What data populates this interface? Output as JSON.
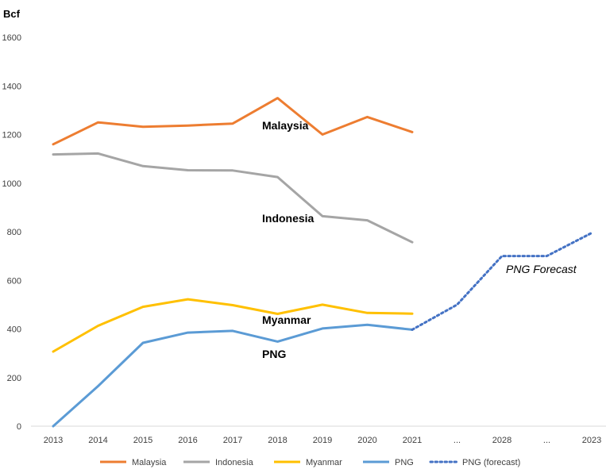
{
  "chart_data": {
    "type": "line",
    "ylabel": "Bcf",
    "xlabel": "",
    "title": "",
    "ylim": [
      0,
      1600
    ],
    "yticks": [
      0,
      200,
      400,
      600,
      800,
      1000,
      1200,
      1400,
      1600
    ],
    "categories": [
      "2013",
      "2014",
      "2015",
      "2016",
      "2017",
      "2018",
      "2019",
      "2020",
      "2021",
      "...",
      "2028",
      "...",
      "2023"
    ],
    "grid": false,
    "legend_position": "bottom",
    "series": [
      {
        "name": "Malaysia",
        "color": "#ED7D31",
        "style": "solid",
        "values": [
          1160,
          1250,
          1232,
          1237,
          1245,
          1350,
          1200,
          1272,
          1210,
          null,
          null,
          null,
          null
        ]
      },
      {
        "name": "Indonesia",
        "color": "#A5A5A5",
        "style": "solid",
        "values": [
          1118,
          1122,
          1070,
          1053,
          1052,
          1025,
          864,
          847,
          757,
          null,
          null,
          null,
          null
        ]
      },
      {
        "name": "Myanmar",
        "color": "#FFC000",
        "style": "solid",
        "values": [
          307,
          413,
          491,
          522,
          498,
          462,
          500,
          466,
          463,
          null,
          null,
          null,
          null
        ]
      },
      {
        "name": "PNG",
        "color": "#5B9BD5",
        "style": "solid",
        "values": [
          0,
          165,
          343,
          385,
          392,
          348,
          402,
          417,
          397,
          null,
          null,
          null,
          null
        ]
      },
      {
        "name": "PNG (forecast)",
        "color": "#4472C4",
        "style": "dotted",
        "values": [
          null,
          null,
          null,
          null,
          null,
          null,
          null,
          null,
          397,
          500,
          700,
          700,
          795
        ]
      }
    ],
    "annotations": [
      {
        "text": "Malaysia",
        "style": "bold"
      },
      {
        "text": "Indonesia",
        "style": "bold"
      },
      {
        "text": "Myanmar",
        "style": "bold"
      },
      {
        "text": "PNG",
        "style": "bold"
      },
      {
        "text": "PNG Forecast",
        "style": "italic"
      }
    ]
  }
}
